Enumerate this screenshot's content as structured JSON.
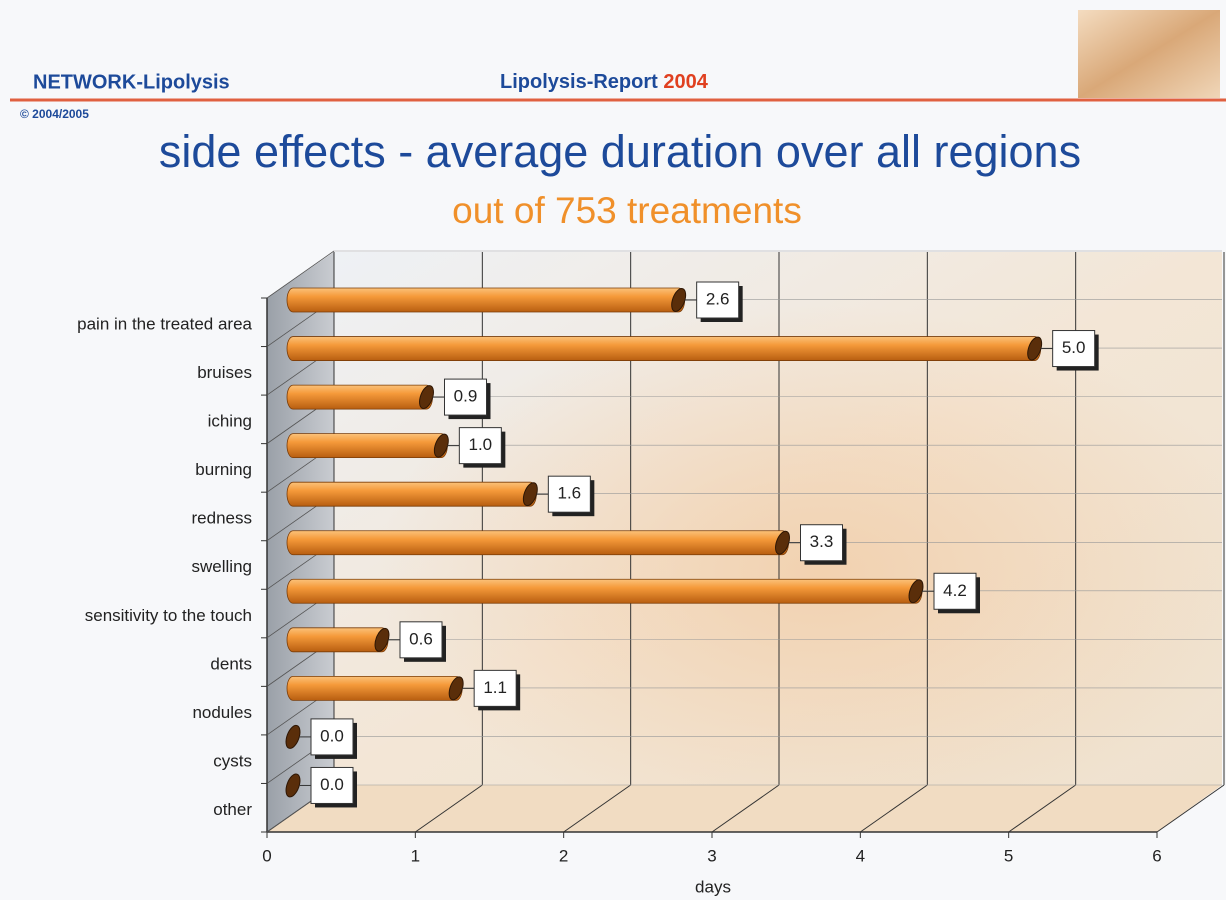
{
  "header": {
    "brand": "NETWORK-Lipolysis",
    "report": "Lipolysis-Report",
    "year": "2004",
    "copyright": "© 2004/2005"
  },
  "chart_data": {
    "type": "bar",
    "orientation": "horizontal",
    "title": "side effects - average duration over all regions",
    "subtitle": "out of 753 treatments",
    "categories": [
      "pain in the treated area",
      "bruises",
      "iching",
      "burning",
      "redness",
      "swelling",
      "sensitivity to the touch",
      "dents",
      "nodules",
      "cysts",
      "other"
    ],
    "values": [
      2.6,
      5.0,
      0.9,
      1.0,
      1.6,
      3.3,
      4.2,
      0.6,
      1.1,
      0.0,
      0.0
    ],
    "value_labels": [
      "2.6",
      "5.0",
      "0.9",
      "1.0",
      "1.6",
      "3.3",
      "4.2",
      "0.6",
      "1.1",
      "0.0",
      "0.0"
    ],
    "color": "#f08a24",
    "xlim": [
      0,
      6
    ],
    "xticks": [
      0,
      1,
      2,
      3,
      4,
      5,
      6
    ],
    "x_label": "days",
    "grid": true
  }
}
